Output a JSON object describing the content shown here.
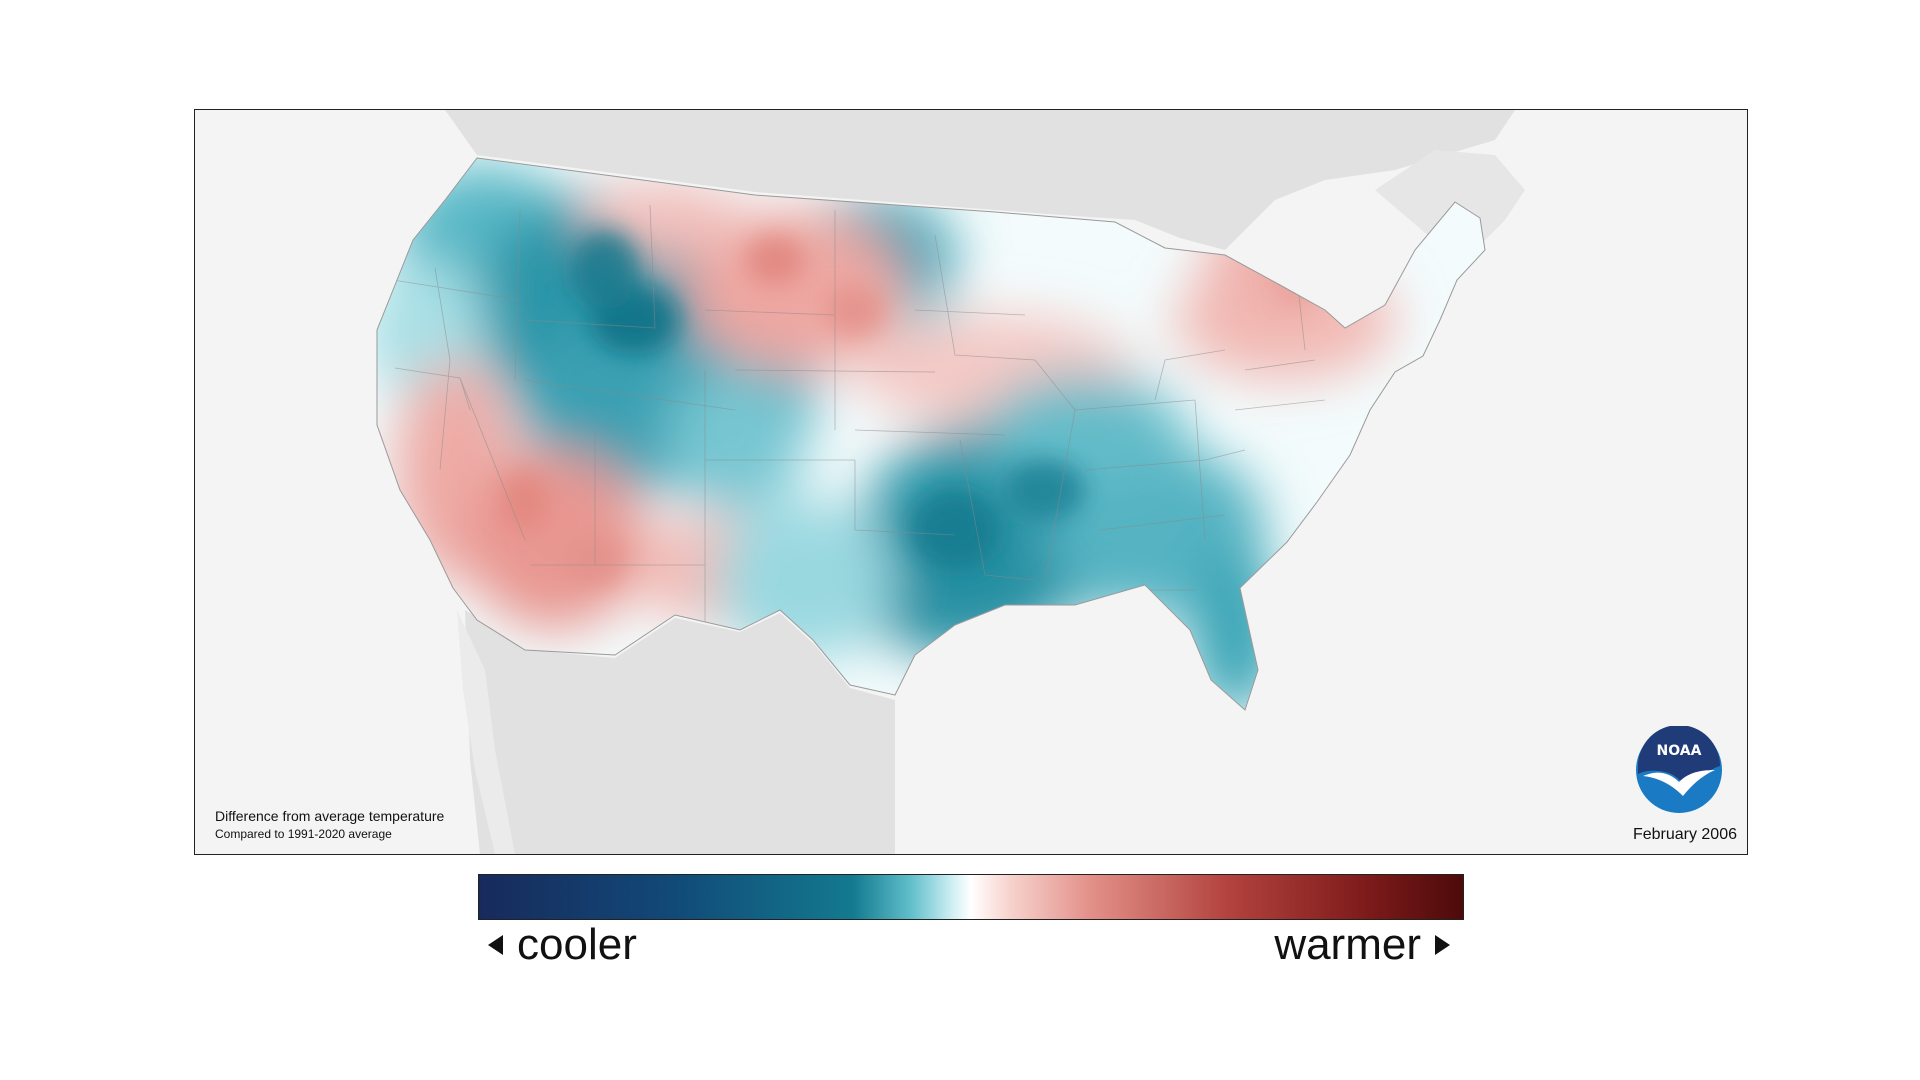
{
  "map": {
    "title": "Difference from average temperature",
    "subtitle": "Compared to 1991-2020 average",
    "date": "February 2006",
    "logo_text": "NOAA"
  },
  "colorbar": {
    "left_label": "cooler",
    "right_label": "warmer",
    "colors": [
      "#172a5c",
      "#137a8f",
      "#ffffff",
      "#e3918a",
      "#4d0a0a"
    ]
  },
  "colors": {
    "land_neighbor": "#e1e1e1",
    "water": "#f4f4f4",
    "noaa_blue": "#1a7bc4",
    "noaa_navy": "#1f3b78"
  }
}
